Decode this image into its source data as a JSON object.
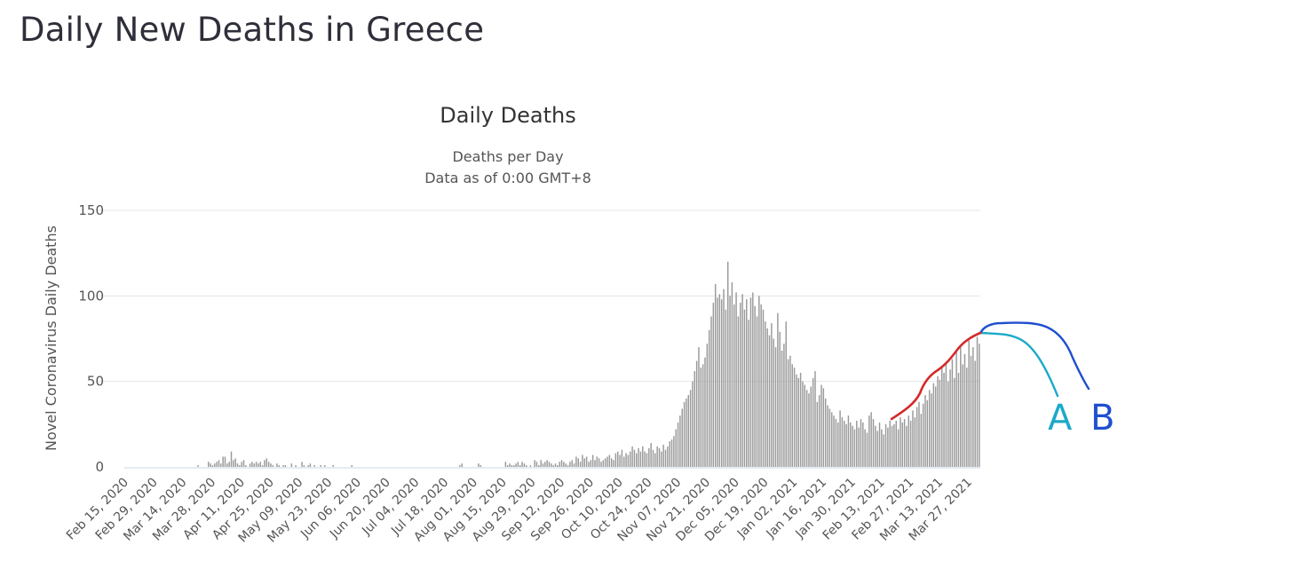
{
  "page": {
    "title": "Daily New Deaths in Greece"
  },
  "chart_data": {
    "type": "bar",
    "title": "Daily Deaths",
    "subtitle_line1": "Deaths per Day",
    "subtitle_line2": "Data as of 0:00 GMT+8",
    "ylabel": "Novel Coronavirus Daily Deaths",
    "ylim": [
      0,
      150
    ],
    "yticks": [
      0,
      50,
      100,
      150
    ],
    "grid": true,
    "start_date": "2020-02-15",
    "x_tick_labels": [
      "Feb 15, 2020",
      "Feb 29, 2020",
      "Mar 14, 2020",
      "Mar 28, 2020",
      "Apr 11, 2020",
      "Apr 25, 2020",
      "May 09, 2020",
      "May 23, 2020",
      "Jun 06, 2020",
      "Jun 20, 2020",
      "Jul 04, 2020",
      "Jul 18, 2020",
      "Aug 01, 2020",
      "Aug 15, 2020",
      "Aug 29, 2020",
      "Sep 12, 2020",
      "Sep 26, 2020",
      "Oct 10, 2020",
      "Oct 24, 2020",
      "Nov 07, 2020",
      "Nov 21, 2020",
      "Dec 05, 2020",
      "Dec 19, 2020",
      "Jan 02, 2021",
      "Jan 16, 2021",
      "Jan 30, 2021",
      "Feb 13, 2021",
      "Feb 27, 2021",
      "Mar 13, 2021",
      "Mar 27, 2021"
    ],
    "bar_color": "#999999",
    "series": [
      {
        "values": [
          0,
          0,
          0,
          0,
          0,
          0,
          0,
          0,
          0,
          0,
          0,
          0,
          0,
          0,
          0,
          0,
          0,
          0,
          0,
          0,
          0,
          0,
          0,
          0,
          0,
          0,
          0,
          0,
          0,
          0,
          0,
          0,
          0,
          0,
          0,
          1,
          0,
          0,
          0,
          0,
          3,
          2,
          1,
          2,
          3,
          4,
          2,
          6,
          6,
          2,
          3,
          9,
          4,
          5,
          2,
          1,
          3,
          4,
          1,
          0,
          2,
          3,
          2,
          3,
          2,
          3,
          1,
          4,
          5,
          3,
          2,
          1,
          0,
          2,
          1,
          0,
          1,
          1,
          0,
          0,
          2,
          0,
          1,
          0,
          0,
          3,
          1,
          0,
          1,
          2,
          0,
          1,
          0,
          0,
          1,
          0,
          1,
          0,
          0,
          0,
          1,
          0,
          0,
          0,
          0,
          0,
          0,
          0,
          0,
          1,
          0,
          0,
          0,
          0,
          0,
          0,
          0,
          0,
          0,
          0,
          0,
          0,
          0,
          0,
          0,
          0,
          0,
          0,
          0,
          0,
          0,
          0,
          0,
          0,
          0,
          0,
          0,
          0,
          0,
          0,
          0,
          0,
          0,
          0,
          0,
          0,
          0,
          0,
          0,
          0,
          0,
          0,
          0,
          0,
          0,
          0,
          0,
          0,
          0,
          0,
          0,
          1,
          2,
          0,
          0,
          0,
          0,
          0,
          0,
          0,
          2,
          1,
          0,
          0,
          0,
          0,
          0,
          0,
          0,
          0,
          0,
          0,
          0,
          3,
          1,
          2,
          1,
          1,
          2,
          3,
          1,
          3,
          2,
          1,
          0,
          1,
          0,
          4,
          3,
          1,
          4,
          2,
          3,
          4,
          3,
          2,
          1,
          2,
          1,
          3,
          4,
          3,
          2,
          1,
          3,
          4,
          2,
          6,
          5,
          3,
          7,
          5,
          6,
          3,
          4,
          7,
          4,
          6,
          5,
          3,
          4,
          5,
          6,
          7,
          5,
          4,
          8,
          9,
          7,
          10,
          6,
          8,
          7,
          9,
          12,
          10,
          8,
          11,
          9,
          12,
          9,
          8,
          11,
          14,
          10,
          8,
          12,
          11,
          9,
          13,
          10,
          12,
          15,
          16,
          18,
          22,
          26,
          30,
          34,
          38,
          40,
          42,
          45,
          50,
          56,
          62,
          70,
          58,
          60,
          64,
          72,
          80,
          88,
          96,
          107,
          99,
          101,
          98,
          104,
          92,
          120,
          100,
          108,
          95,
          102,
          88,
          96,
          101,
          92,
          98,
          86,
          99,
          102,
          94,
          88,
          100,
          95,
          92,
          85,
          81,
          77,
          84,
          75,
          70,
          90,
          79,
          68,
          72,
          85,
          63,
          65,
          60,
          58,
          54,
          52,
          55,
          50,
          48,
          45,
          43,
          47,
          52,
          56,
          38,
          42,
          48,
          46,
          40,
          36,
          34,
          32,
          30,
          28,
          26,
          33,
          29,
          27,
          25,
          30,
          26,
          24,
          22,
          27,
          23,
          28,
          26,
          22,
          20,
          30,
          32,
          28,
          24,
          21,
          26,
          22,
          19,
          25,
          23,
          27,
          24,
          25,
          27,
          22,
          29,
          26,
          28,
          24,
          30,
          27,
          33,
          29,
          35,
          38,
          31,
          37,
          42,
          39,
          45,
          43,
          49,
          47,
          53,
          51,
          58,
          55,
          61,
          50,
          57,
          63,
          52,
          68,
          55,
          71,
          60,
          66,
          58,
          74,
          65,
          70,
          62,
          76,
          72
        ]
      }
    ],
    "annotations": [
      {
        "label": "A",
        "color": "#1ba9c9"
      },
      {
        "label": "B",
        "color": "#1f4fcf"
      }
    ],
    "trend_color": "#d42a2a"
  }
}
